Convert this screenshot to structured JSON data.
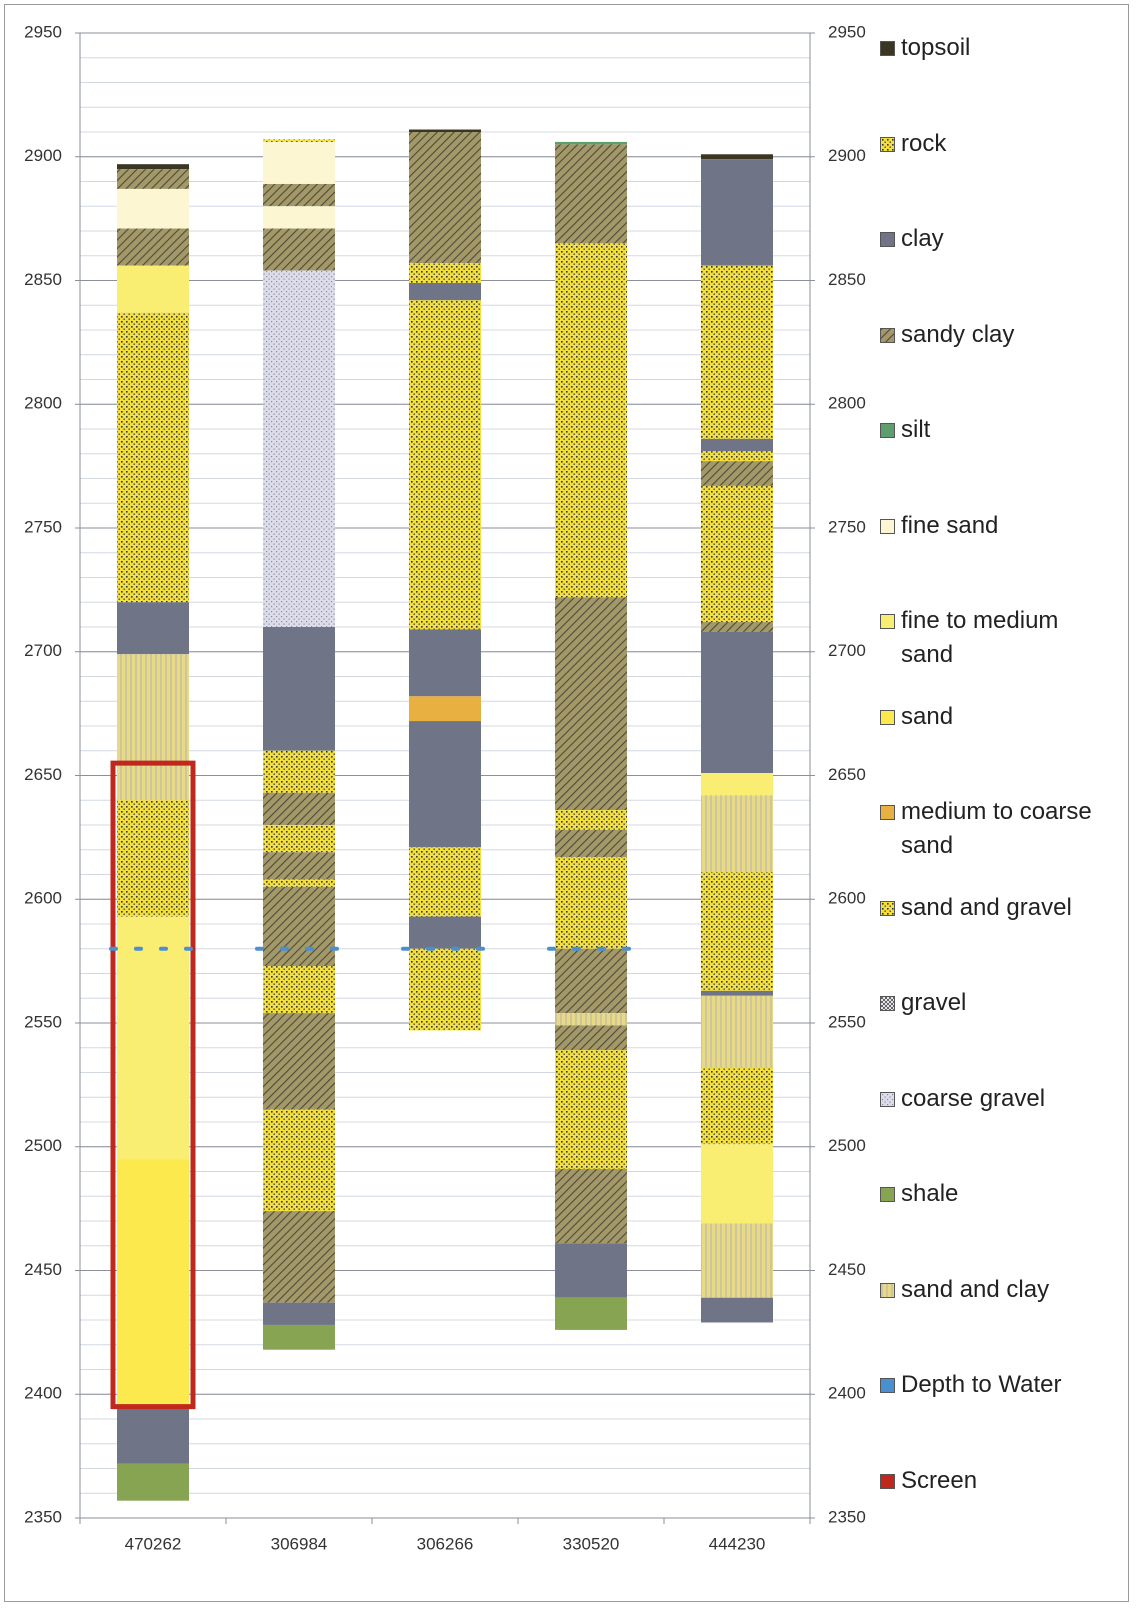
{
  "chart_data": {
    "type": "floating-stacked-bar",
    "categories": [
      "470262",
      "306984",
      "306266",
      "330520",
      "444230"
    ],
    "ylim": [
      2350,
      2950
    ],
    "yticks": [
      2350,
      2400,
      2450,
      2500,
      2550,
      2600,
      2650,
      2700,
      2750,
      2800,
      2850,
      2900,
      2950
    ],
    "minor_grid_step": 10,
    "grid": true,
    "right_axis": true,
    "series": [
      {
        "name": "topsoil",
        "color": "#3b3621",
        "pattern": "none"
      },
      {
        "name": "rock",
        "color": "#151515",
        "pattern": "dots"
      },
      {
        "name": "clay",
        "color": "#6f7586",
        "pattern": "none"
      },
      {
        "name": "sandy clay",
        "color": "#a39868",
        "pattern": "hatch"
      },
      {
        "name": "silt",
        "color": "#5e9e6e",
        "pattern": "none"
      },
      {
        "name": "fine sand",
        "color": "#fcf7d2",
        "pattern": "none"
      },
      {
        "name": "fine to medium sand",
        "color": "#f9ed72",
        "pattern": "none"
      },
      {
        "name": "sand",
        "color": "#fbe94e",
        "pattern": "none"
      },
      {
        "name": "medium to coarse sand",
        "color": "#e8b040",
        "pattern": "none"
      },
      {
        "name": "sand and gravel",
        "color": "#f3e03e",
        "pattern": "dots"
      },
      {
        "name": "gravel",
        "color": "#e4e4ec",
        "pattern": "checks"
      },
      {
        "name": "coarse gravel",
        "color": "#dcdcea",
        "pattern": "finedots"
      },
      {
        "name": "shale",
        "color": "#86a452",
        "pattern": "none"
      },
      {
        "name": "sand and clay",
        "color": "#e8da84",
        "pattern": "stripes"
      }
    ],
    "layers": [
      [
        {
          "lith": "topsoil",
          "top": 2897,
          "bottom": 2895
        },
        {
          "lith": "sandy clay",
          "top": 2895,
          "bottom": 2887
        },
        {
          "lith": "fine sand",
          "top": 2887,
          "bottom": 2871
        },
        {
          "lith": "sandy clay",
          "top": 2871,
          "bottom": 2856
        },
        {
          "lith": "fine to medium sand",
          "top": 2856,
          "bottom": 2837
        },
        {
          "lith": "sand and gravel",
          "top": 2837,
          "bottom": 2720
        },
        {
          "lith": "clay",
          "top": 2720,
          "bottom": 2699
        },
        {
          "lith": "sand and clay",
          "top": 2699,
          "bottom": 2640
        },
        {
          "lith": "sand and gravel",
          "top": 2640,
          "bottom": 2593
        },
        {
          "lith": "fine to medium sand",
          "top": 2593,
          "bottom": 2495
        },
        {
          "lith": "sand",
          "top": 2495,
          "bottom": 2395
        },
        {
          "lith": "clay",
          "top": 2395,
          "bottom": 2372
        },
        {
          "lith": "shale",
          "top": 2372,
          "bottom": 2357
        }
      ],
      [
        {
          "lith": "rock",
          "top": 2907,
          "bottom": 2906
        },
        {
          "lith": "fine sand",
          "top": 2906,
          "bottom": 2889
        },
        {
          "lith": "sandy clay",
          "top": 2889,
          "bottom": 2880
        },
        {
          "lith": "fine sand",
          "top": 2880,
          "bottom": 2871
        },
        {
          "lith": "sandy clay",
          "top": 2871,
          "bottom": 2854
        },
        {
          "lith": "coarse gravel",
          "top": 2854,
          "bottom": 2710
        },
        {
          "lith": "clay",
          "top": 2710,
          "bottom": 2660
        },
        {
          "lith": "sand and gravel",
          "top": 2660,
          "bottom": 2643
        },
        {
          "lith": "sandy clay",
          "top": 2643,
          "bottom": 2630
        },
        {
          "lith": "sand and gravel",
          "top": 2630,
          "bottom": 2619
        },
        {
          "lith": "sandy clay",
          "top": 2619,
          "bottom": 2608
        },
        {
          "lith": "sand and gravel",
          "top": 2608,
          "bottom": 2605
        },
        {
          "lith": "sandy clay",
          "top": 2605,
          "bottom": 2573
        },
        {
          "lith": "sand and gravel",
          "top": 2573,
          "bottom": 2554
        },
        {
          "lith": "sandy clay",
          "top": 2554,
          "bottom": 2515
        },
        {
          "lith": "sand and gravel",
          "top": 2515,
          "bottom": 2474
        },
        {
          "lith": "sandy clay",
          "top": 2474,
          "bottom": 2437
        },
        {
          "lith": "clay",
          "top": 2437,
          "bottom": 2428
        },
        {
          "lith": "shale",
          "top": 2428,
          "bottom": 2418
        }
      ],
      [
        {
          "lith": "topsoil",
          "top": 2911,
          "bottom": 2910
        },
        {
          "lith": "sandy clay",
          "top": 2910,
          "bottom": 2857
        },
        {
          "lith": "sand and gravel",
          "top": 2857,
          "bottom": 2849
        },
        {
          "lith": "clay",
          "top": 2849,
          "bottom": 2842
        },
        {
          "lith": "sand and gravel",
          "top": 2842,
          "bottom": 2709
        },
        {
          "lith": "clay",
          "top": 2709,
          "bottom": 2682
        },
        {
          "lith": "medium to coarse sand",
          "top": 2682,
          "bottom": 2672
        },
        {
          "lith": "clay",
          "top": 2672,
          "bottom": 2621
        },
        {
          "lith": "sand and gravel",
          "top": 2621,
          "bottom": 2593
        },
        {
          "lith": "clay",
          "top": 2593,
          "bottom": 2580
        },
        {
          "lith": "sand and gravel",
          "top": 2580,
          "bottom": 2547
        }
      ],
      [
        {
          "lith": "silt",
          "top": 2906,
          "bottom": 2905
        },
        {
          "lith": "sandy clay",
          "top": 2905,
          "bottom": 2865
        },
        {
          "lith": "sand and gravel",
          "top": 2865,
          "bottom": 2722
        },
        {
          "lith": "sandy clay",
          "top": 2722,
          "bottom": 2636
        },
        {
          "lith": "sand and gravel",
          "top": 2636,
          "bottom": 2628
        },
        {
          "lith": "sandy clay",
          "top": 2628,
          "bottom": 2617
        },
        {
          "lith": "sand and gravel",
          "top": 2617,
          "bottom": 2580
        },
        {
          "lith": "sandy clay",
          "top": 2580,
          "bottom": 2554
        },
        {
          "lith": "sand and clay",
          "top": 2554,
          "bottom": 2549
        },
        {
          "lith": "sandy clay",
          "top": 2549,
          "bottom": 2539
        },
        {
          "lith": "sand and gravel",
          "top": 2539,
          "bottom": 2491
        },
        {
          "lith": "sandy clay",
          "top": 2491,
          "bottom": 2461
        },
        {
          "lith": "clay",
          "top": 2461,
          "bottom": 2439
        },
        {
          "lith": "shale",
          "top": 2439,
          "bottom": 2426
        }
      ],
      [
        {
          "lith": "topsoil",
          "top": 2901,
          "bottom": 2899
        },
        {
          "lith": "clay",
          "top": 2899,
          "bottom": 2856
        },
        {
          "lith": "sand and gravel",
          "top": 2856,
          "bottom": 2786
        },
        {
          "lith": "clay",
          "top": 2786,
          "bottom": 2781
        },
        {
          "lith": "sand and gravel",
          "top": 2781,
          "bottom": 2777
        },
        {
          "lith": "sandy clay",
          "top": 2777,
          "bottom": 2767
        },
        {
          "lith": "sand and gravel",
          "top": 2767,
          "bottom": 2726
        },
        {
          "lith": "rock",
          "top": 2726,
          "bottom": 2724
        },
        {
          "lith": "sand and gravel",
          "top": 2724,
          "bottom": 2712
        },
        {
          "lith": "sandy clay",
          "top": 2712,
          "bottom": 2708
        },
        {
          "lith": "clay",
          "top": 2708,
          "bottom": 2651
        },
        {
          "lith": "fine to medium sand",
          "top": 2651,
          "bottom": 2642
        },
        {
          "lith": "sand and clay",
          "top": 2642,
          "bottom": 2611
        },
        {
          "lith": "sand and gravel",
          "top": 2611,
          "bottom": 2563
        },
        {
          "lith": "clay",
          "top": 2563,
          "bottom": 2561
        },
        {
          "lith": "sand and clay",
          "top": 2561,
          "bottom": 2532
        },
        {
          "lith": "sand and gravel",
          "top": 2532,
          "bottom": 2501
        },
        {
          "lith": "fine to medium sand",
          "top": 2501,
          "bottom": 2469
        },
        {
          "lith": "sand and clay",
          "top": 2469,
          "bottom": 2439
        },
        {
          "lith": "clay",
          "top": 2439,
          "bottom": 2429
        }
      ]
    ],
    "water": {
      "name": "Depth to Water",
      "color": "#4a8fd0",
      "values": [
        2580,
        2580,
        2580,
        2580,
        null
      ]
    },
    "screen": {
      "name": "Screen",
      "color": "#c0281e",
      "top": [
        2655,
        null,
        null,
        null,
        null
      ],
      "bottom": [
        2395,
        null,
        null,
        null,
        null
      ]
    }
  }
}
